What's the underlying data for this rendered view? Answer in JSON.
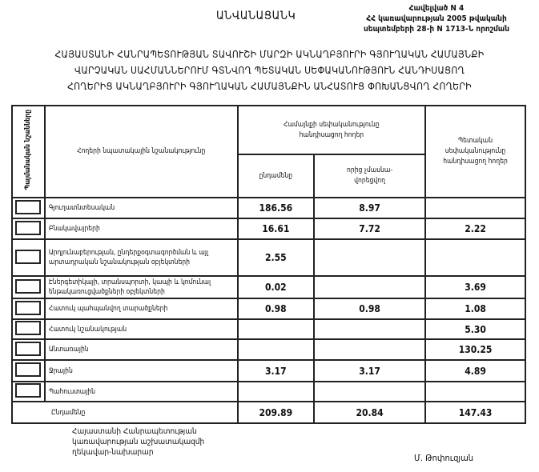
{
  "document": {
    "title": "ԱՆՎԱՆԱՑԱՆԿ",
    "annex": [
      "Հավելված N 4",
      "ՀՀ կառավարության 2005 թվականի",
      "սեպտեմբերի 28-ի N 1713-Ն որոշման"
    ],
    "heading": [
      "ՀԱՅԱՍՏԱՆԻ ՀԱՆՐԱՊԵՏՈՒԹՅԱՆ ՏԱՎՈՒՇԻ ՄԱՐԶԻ ԱԿՆԱՂԲՅՈՒՐԻ ԳՅՈՒՂԱԿԱՆ ՀԱՄԱՅՆՔԻ",
      "ՎԱՐՉԱԿԱՆ ՍԱՀՄԱՆՆԵՐՈՒՄ ԳՏՆՎՈՂ ՊԵՏԱԿԱՆ ՍԵՓԱԿԱՆՈՒԹՅՈՒՆ ՀԱՆԴԻՍԱՑՈՂ",
      "ՀՈՂԵՐԻՑ ԱԿՆԱՂԲՅՈՒՐԻ ԳՅՈՒՂԱԿԱՆ ՀԱՄԱՅՆՔԻՆ ԱՆՀԱՏՈՒՑ ՓՈԽԱՆՑՎՈՂ ՀՈՂԵՐԻ"
    ]
  },
  "table": {
    "headers": {
      "symbols": "Պայմանական նշանները",
      "purpose": "Հողերի նպատակային նշանակությունը",
      "community_group": "Համայնքի սեփականությունը հանդիսացող հողեր",
      "total": "ընդամենը",
      "of_which": "որից չմասնա-վորեցվող",
      "state": "Պետական սեփականությունը հանդիսացող հողեր"
    },
    "rows": [
      {
        "label": "Գյուղատնտեսական",
        "total": "186.56",
        "of_which": "8.97",
        "state": ""
      },
      {
        "label": "Բնակավայրերի",
        "total": "16.61",
        "of_which": "7.72",
        "state": "2.22"
      },
      {
        "label": "Արդյունաբերության, ընդերքօգտագործման և այլ արտադրական նշանակության օբյեկտների",
        "total": "2.55",
        "of_which": "",
        "state": ""
      },
      {
        "label": "Էներգետիկայի, տրանսպորտի, կապի և կոմունալ ենթակառուցվածքների օբյեկտների",
        "total": "0.02",
        "of_which": "",
        "state": "3.69"
      },
      {
        "label": "Հատուկ պահպանվող տարածքների",
        "total": "0.98",
        "of_which": "0.98",
        "state": "1.08"
      },
      {
        "label": "Հատուկ նշանակության",
        "total": "",
        "of_which": "",
        "state": "5.30"
      },
      {
        "label": "Անտառային",
        "total": "",
        "of_which": "",
        "state": "130.25"
      },
      {
        "label": "Ջրային",
        "total": "3.17",
        "of_which": "3.17",
        "state": "4.89"
      },
      {
        "label": "Պահուստային",
        "total": "",
        "of_which": "",
        "state": ""
      }
    ],
    "totals": {
      "label": "Ընդամենը",
      "total": "209.89",
      "of_which": "20.84",
      "state": "147.43"
    }
  },
  "footer": {
    "position": [
      "Հայաստանի Հանրապետության",
      "կառավարության աշխատակազմի",
      "ղեկավար-նախարար"
    ],
    "signatory": "Մ. Թոփուզյան"
  }
}
